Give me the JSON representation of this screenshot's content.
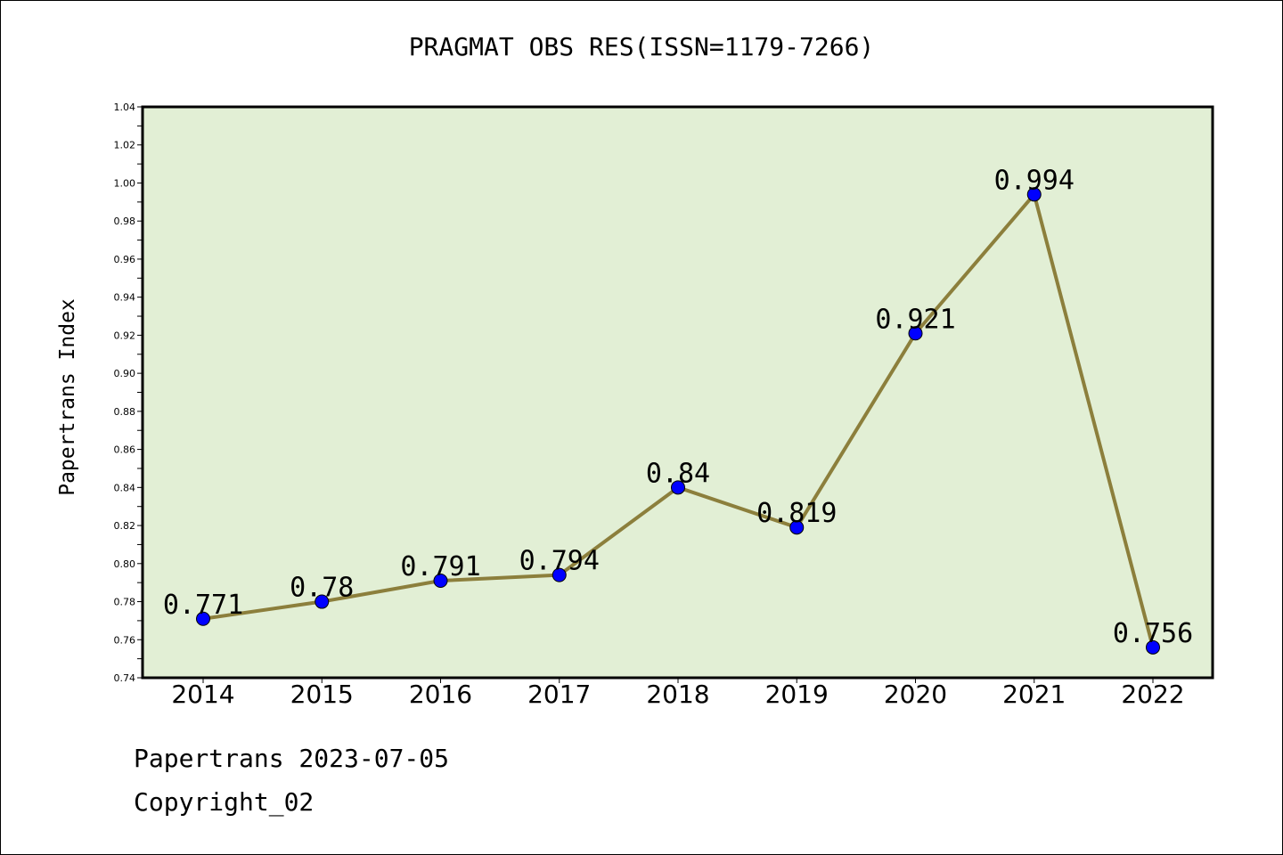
{
  "chart_data": {
    "type": "line",
    "title": "PRAGMAT OBS RES(ISSN=1179-7266)",
    "xlabel": "",
    "ylabel": "Papertrans Index",
    "categories": [
      "2014",
      "2015",
      "2016",
      "2017",
      "2018",
      "2019",
      "2020",
      "2021",
      "2022"
    ],
    "series": [
      {
        "values": [
          0.771,
          0.78,
          0.791,
          0.794,
          0.84,
          0.819,
          0.921,
          0.994,
          0.756
        ],
        "data_labels": [
          "0.771",
          "0.78",
          "0.791",
          "0.794",
          "0.84",
          "0.819",
          "0.921",
          "0.994",
          "0.756"
        ]
      }
    ],
    "ylim": [
      0.74,
      1.04
    ],
    "yticks": [
      "0.74",
      "0.76",
      "0.78",
      "0.80",
      "0.82",
      "0.84",
      "0.86",
      "0.88",
      "0.90",
      "0.92",
      "0.94",
      "0.96",
      "0.98",
      "1.00",
      "1.02",
      "1.04"
    ],
    "grid": false,
    "legend": "none",
    "colors": {
      "line": "#8c7f3c",
      "marker": "#0000ff",
      "plot_bg": "#e2efd5"
    }
  },
  "footer": {
    "line1": "Papertrans 2023-07-05",
    "line2": "Copyright_02"
  }
}
